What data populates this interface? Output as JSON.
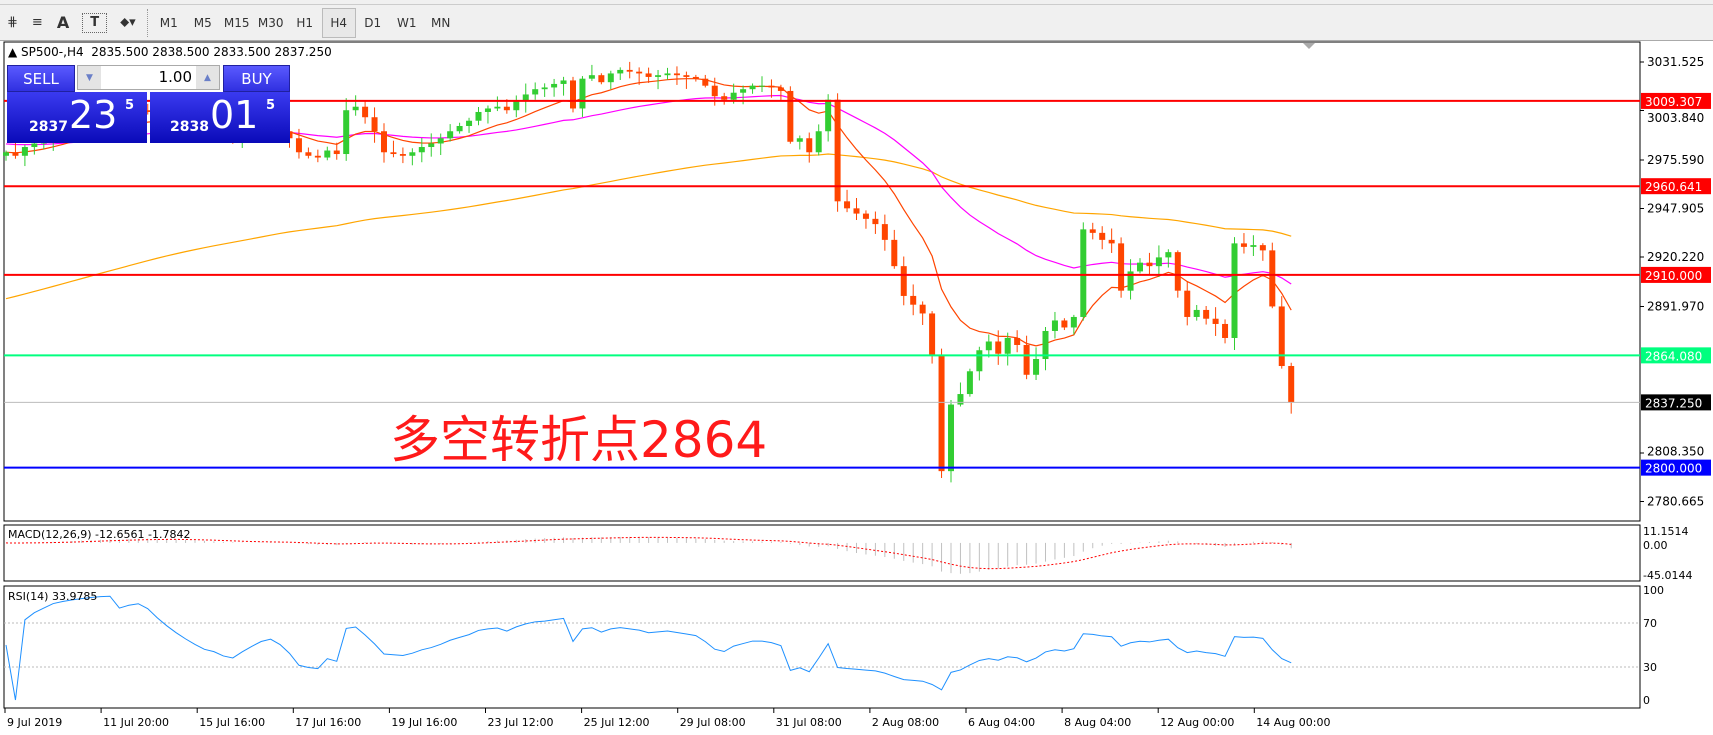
{
  "toolbar": {
    "tools": [
      {
        "name": "elliott-icon",
        "glyph": "⋕"
      },
      {
        "name": "fibonacci-icon",
        "glyph": "≡"
      },
      {
        "name": "text-icon",
        "glyph": "A"
      },
      {
        "name": "text-label-icon",
        "glyph": "T"
      },
      {
        "name": "arrows-icon",
        "glyph": "⬥▾"
      }
    ],
    "timeframes": [
      "M1",
      "M5",
      "M15",
      "M30",
      "H1",
      "H4",
      "D1",
      "W1",
      "MN"
    ],
    "active_timeframe": "H4"
  },
  "chart": {
    "symbol_line": "SP500-,H4  2835.500 2838.500 2833.500 2837.250",
    "annotation": "多空转折点2864"
  },
  "trade_panel": {
    "sell_label": "SELL",
    "buy_label": "BUY",
    "volume": "1.00",
    "sell_price": {
      "prefix": "2837",
      "big": "23",
      "sup": "5"
    },
    "buy_price": {
      "prefix": "2838",
      "big": "01",
      "sup": "5"
    }
  },
  "chart_data": {
    "type": "candlestick",
    "price_ticks": [
      "3031.525",
      "3003.840",
      "2975.590",
      "2947.905",
      "2920.220",
      "2891.970",
      "2808.350",
      "2780.665"
    ],
    "date_ticks": [
      "9 Jul 2019",
      "11 Jul 20:00",
      "15 Jul 16:00",
      "17 Jul 16:00",
      "19 Jul 16:00",
      "23 Jul 12:00",
      "25 Jul 12:00",
      "29 Jul 08:00",
      "31 Jul 08:00",
      "2 Aug 08:00",
      "6 Aug 04:00",
      "8 Aug 04:00",
      "12 Aug 00:00",
      "14 Aug 00:00"
    ],
    "closes": [
      2980,
      2978,
      2983,
      2985,
      2987,
      2990,
      2992,
      2994,
      2996,
      2998,
      3000,
      3001,
      2999,
      3002,
      3004,
      3003,
      3001,
      2999,
      2997,
      2995,
      2993,
      2991,
      2990,
      2988,
      2987,
      2989,
      2991,
      2993,
      2994,
      2992,
      2988,
      2980,
      2978,
      2977,
      2981,
      2979,
      3004,
      3006,
      3000,
      2992,
      2980,
      2979,
      2978,
      2980,
      2983,
      2985,
      2988,
      2992,
      2995,
      2998,
      3003,
      3005,
      3006,
      3004,
      3009,
      3013,
      3016,
      3017,
      3019,
      3021,
      3005,
      3022,
      3024,
      3020,
      3025,
      3027,
      3026,
      3025,
      3023,
      3024,
      3025,
      3024,
      3023,
      3022,
      3018,
      3012,
      3010,
      3014,
      3016,
      3018,
      3018,
      3017,
      3015,
      2986,
      2988,
      2980,
      2992,
      3010,
      2952,
      2948,
      2945,
      2942,
      2939,
      2930,
      2915,
      2898,
      2893,
      2888,
      2864,
      2798,
      2836,
      2842,
      2855,
      2867,
      2872,
      2865,
      2874,
      2870,
      2853,
      2862,
      2878,
      2884,
      2880,
      2886,
      2936,
      2934,
      2930,
      2928,
      2901,
      2912,
      2917,
      2915,
      2920,
      2923,
      2901,
      2886,
      2890,
      2885,
      2882,
      2874,
      2928,
      2926,
      2927,
      2924,
      2892,
      2858,
      2837.25
    ],
    "levels": [
      {
        "value": "3009.307",
        "color": "#ff0000"
      },
      {
        "value": "2960.641",
        "color": "#ff0000"
      },
      {
        "value": "2910.000",
        "color": "#ff0000"
      },
      {
        "value": "2864.080",
        "color": "#00ff7f"
      },
      {
        "value": "2800.000",
        "color": "#0000ff"
      }
    ],
    "current_price": "2837.250",
    "colors": {
      "up": "#32cd32",
      "down": "#ff4500",
      "ma_fast": "#ff4500",
      "ma_mid": "#ff00ff",
      "ma_slow": "#ffa500"
    },
    "macd": {
      "label": "MACD(12,26,9) -12.6561 -1.7842",
      "ticks": [
        "11.1514",
        "0.00",
        "-45.0144"
      ]
    },
    "rsi": {
      "label": "RSI(14) 33.9785",
      "ticks": [
        "100",
        "70",
        "30",
        "0"
      ],
      "color": "#1e90ff"
    }
  }
}
